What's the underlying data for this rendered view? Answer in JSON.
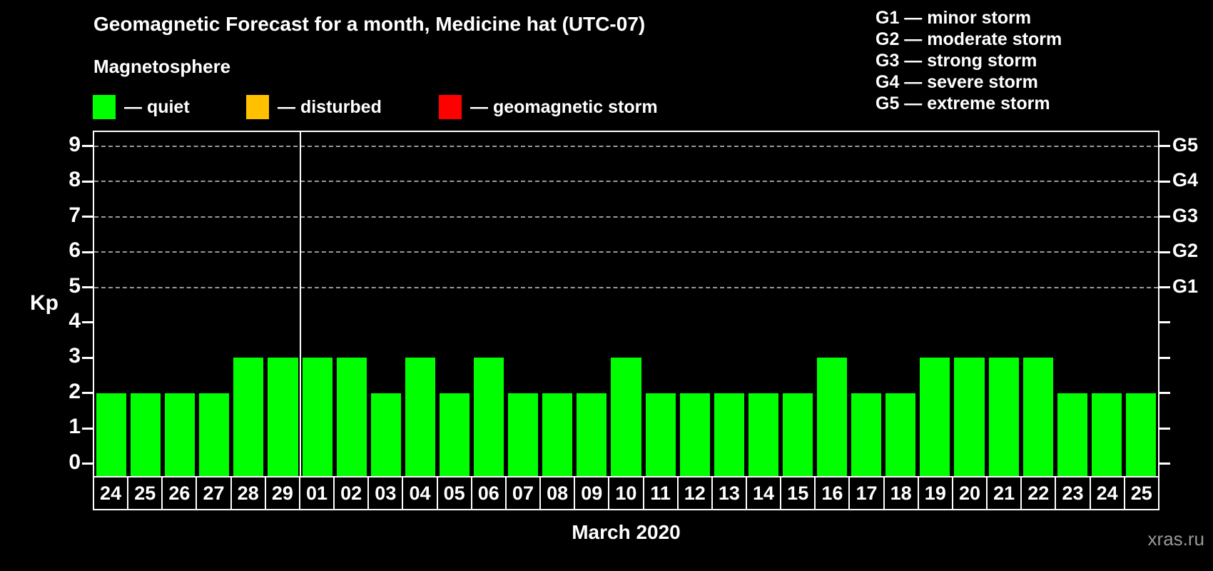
{
  "title": "Geomagnetic Forecast for a month, Medicine hat (UTC-07)",
  "magnetosphere": {
    "label": "Magnetosphere",
    "legend": [
      {
        "name": "quiet",
        "label": "— quiet",
        "color": "#00ff00"
      },
      {
        "name": "disturbed",
        "label": "— disturbed",
        "color": "#ffc000"
      },
      {
        "name": "geomagnetic-storm",
        "label": "— geomagnetic storm",
        "color": "#ff0000"
      }
    ]
  },
  "storm_scale": {
    "items": [
      {
        "label": "G1 — minor storm"
      },
      {
        "label": "G2 — moderate storm"
      },
      {
        "label": "G3 — strong storm"
      },
      {
        "label": "G4 — severe storm"
      },
      {
        "label": "G5 — extreme storm"
      }
    ]
  },
  "chart_data": {
    "type": "bar",
    "title": "Geomagnetic Forecast for a month, Medicine hat (UTC-07)",
    "ylabel": "Kp",
    "xlabel": "March 2020",
    "ylim": [
      -0.35,
      9.4
    ],
    "yticks": [
      0,
      1,
      2,
      3,
      4,
      5,
      6,
      7,
      8,
      9
    ],
    "grid": "dashed horizontal lines at Kp 5..9 only",
    "legend_position": "top-left",
    "g_levels": [
      {
        "kp": 5,
        "label": "G1"
      },
      {
        "kp": 6,
        "label": "G2"
      },
      {
        "kp": 7,
        "label": "G3"
      },
      {
        "kp": 8,
        "label": "G4"
      },
      {
        "kp": 9,
        "label": "G5"
      }
    ],
    "categories": [
      "24",
      "25",
      "26",
      "27",
      "28",
      "29",
      "01",
      "02",
      "03",
      "04",
      "05",
      "06",
      "07",
      "08",
      "09",
      "10",
      "11",
      "12",
      "13",
      "14",
      "15",
      "16",
      "17",
      "18",
      "19",
      "20",
      "21",
      "22",
      "23",
      "24",
      "25"
    ],
    "values": [
      2,
      2,
      2,
      2,
      3,
      3,
      3,
      3,
      2,
      3,
      2,
      3,
      2,
      2,
      2,
      3,
      2,
      2,
      2,
      2,
      2,
      3,
      2,
      2,
      3,
      3,
      3,
      3,
      2,
      2,
      2
    ],
    "color_rule": {
      "quiet_below": 4,
      "disturbed_at": 4,
      "storm_from": 5
    },
    "month_divider_after_index": 5
  },
  "footer": {
    "month_label": "March 2020",
    "watermark": "xras.ru"
  }
}
